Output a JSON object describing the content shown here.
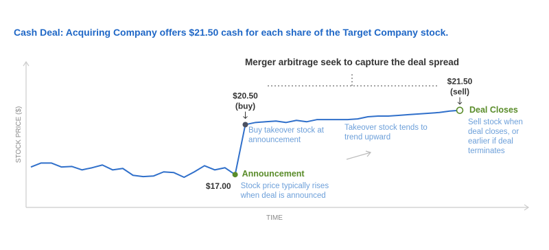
{
  "chart_data": {
    "type": "line",
    "title": "Cash Deal: Acquiring Company offers $21.50 cash for each share of the Target Company stock.",
    "annotation": "Merger arbitrage seek to capture the deal spread",
    "xlabel": "TIME",
    "ylabel": "STOCK PRICE ($)",
    "ylim": [
      14.7,
      24.9
    ],
    "notes": [
      "Buy takeover stock at announcement",
      "Takeover stock tends to trend upward"
    ],
    "series": [
      {
        "color": "#2f6fca",
        "values": [
          17.53,
          17.81,
          17.81,
          17.53,
          17.57,
          17.33,
          17.48,
          17.67,
          17.33,
          17.43,
          16.95,
          16.86,
          16.9,
          17.19,
          17.14,
          16.81,
          17.19,
          17.62,
          17.33,
          17.48,
          17.0,
          20.5,
          20.65,
          20.7,
          20.75,
          20.65,
          20.8,
          20.7,
          20.85,
          20.85,
          20.85,
          20.85,
          20.9,
          21.05,
          21.1,
          21.1,
          21.15,
          21.2,
          21.25,
          21.3,
          21.35,
          21.45,
          21.5
        ],
        "value_labels": [
          null,
          null,
          null,
          null,
          null,
          null,
          null,
          null,
          null,
          null,
          null,
          null,
          null,
          null,
          null,
          null,
          null,
          null,
          null,
          null,
          "$17.00",
          "$20.50",
          null,
          null,
          null,
          null,
          null,
          null,
          null,
          null,
          null,
          null,
          null,
          null,
          null,
          null,
          null,
          null,
          null,
          null,
          null,
          null,
          "$21.50"
        ],
        "tags": [
          null,
          null,
          null,
          null,
          null,
          null,
          null,
          null,
          null,
          null,
          null,
          null,
          null,
          null,
          null,
          null,
          null,
          null,
          null,
          null,
          null,
          "(buy)",
          null,
          null,
          null,
          null,
          null,
          null,
          null,
          null,
          null,
          null,
          null,
          null,
          null,
          null,
          null,
          null,
          null,
          null,
          null,
          null,
          "(sell)"
        ],
        "callouts": [
          null,
          null,
          null,
          null,
          null,
          null,
          null,
          null,
          null,
          null,
          null,
          null,
          null,
          null,
          null,
          null,
          null,
          null,
          null,
          null,
          {
            "title": "Announcement",
            "note": "Stock price typically rises when deal is announced",
            "color": "#5a8c2a"
          },
          {
            "color": "#4b5162"
          },
          null,
          null,
          null,
          null,
          null,
          null,
          null,
          null,
          null,
          null,
          null,
          null,
          null,
          null,
          null,
          null,
          null,
          null,
          null,
          null,
          {
            "title": "Deal Closes",
            "note": "Sell stock when deal closes, or earlier if deal terminates",
            "color": "#5a8c2a",
            "hollow": true
          }
        ]
      }
    ]
  }
}
